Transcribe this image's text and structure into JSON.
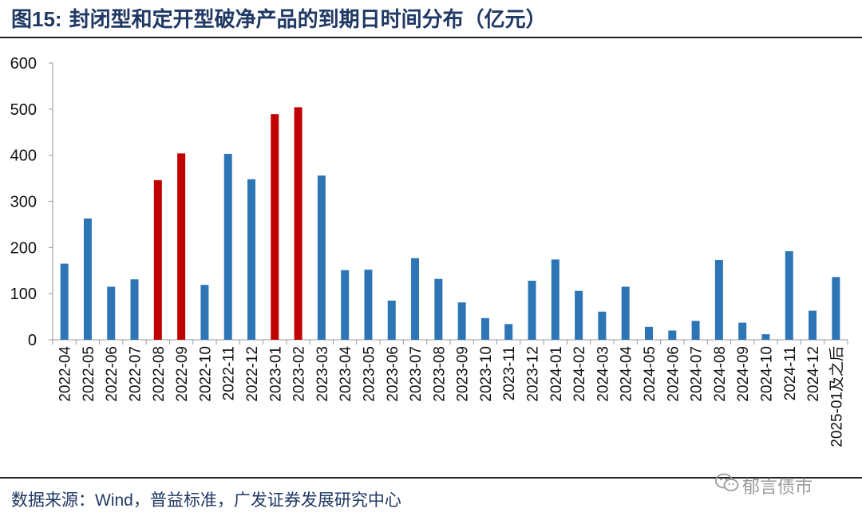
{
  "title": {
    "prefix": "图",
    "number": "15:",
    "text": " 封闭型和定开型破净产品的到期日时间分布（亿元）"
  },
  "source_line": "数据来源：Wind，普益标准，广发证券发展研究中心",
  "watermark_text": "郁言债市",
  "watermark_icon": "wechat-icon",
  "colors": {
    "title": "#1f3864",
    "bar_default": "#2e75b6",
    "bar_highlight": "#c00000",
    "axis": "#999999"
  },
  "chart_data": {
    "type": "bar",
    "title": "封闭型和定开型破净产品的到期日时间分布（亿元）",
    "xlabel": "",
    "ylabel": "",
    "ylim": [
      0,
      600
    ],
    "yticks": [
      0,
      100,
      200,
      300,
      400,
      500,
      600
    ],
    "grid": false,
    "legend": "none",
    "categories": [
      "2022-04",
      "2022-05",
      "2022-06",
      "2022-07",
      "2022-08",
      "2022-09",
      "2022-10",
      "2022-11",
      "2022-12",
      "2023-01",
      "2023-02",
      "2023-03",
      "2023-04",
      "2023-05",
      "2023-06",
      "2023-07",
      "2023-08",
      "2023-09",
      "2023-10",
      "2023-11",
      "2023-12",
      "2024-01",
      "2024-02",
      "2024-03",
      "2024-04",
      "2024-05",
      "2024-06",
      "2024-07",
      "2024-08",
      "2024-09",
      "2024-10",
      "2024-11",
      "2024-12",
      "2025-01及之后"
    ],
    "values": [
      165,
      263,
      115,
      131,
      346,
      404,
      119,
      403,
      348,
      489,
      504,
      356,
      151,
      152,
      85,
      177,
      132,
      81,
      47,
      34,
      128,
      174,
      106,
      61,
      115,
      28,
      20,
      41,
      173,
      37,
      12,
      192,
      63,
      136
    ],
    "highlighted": [
      false,
      false,
      false,
      false,
      true,
      true,
      false,
      false,
      false,
      true,
      true,
      false,
      false,
      false,
      false,
      false,
      false,
      false,
      false,
      false,
      false,
      false,
      false,
      false,
      false,
      false,
      false,
      false,
      false,
      false,
      false,
      false,
      false,
      false
    ]
  }
}
